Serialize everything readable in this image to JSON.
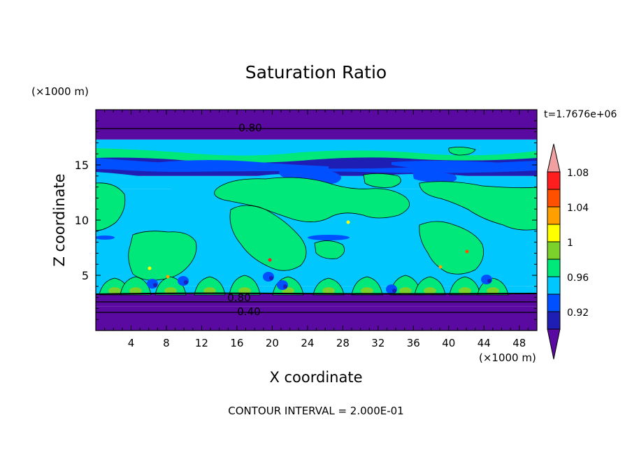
{
  "chart_data": {
    "type": "heatmap",
    "title": "Saturation Ratio",
    "xlabel": "X coordinate",
    "ylabel": "Z coordinate",
    "x_unit": "(×1000 m)",
    "y_unit": "(×1000 m)",
    "time_label": "t=1.7676e+06",
    "footer": "CONTOUR INTERVAL = 2.000E-01",
    "xlim": [
      0,
      50
    ],
    "ylim": [
      0,
      20
    ],
    "x_ticks": [
      4,
      8,
      12,
      16,
      20,
      24,
      28,
      32,
      36,
      40,
      44,
      48
    ],
    "y_ticks": [
      5,
      10,
      15
    ],
    "contour_labels": [
      "0.80",
      "0.80",
      "0.40"
    ],
    "colorbar": {
      "levels": [
        0.92,
        0.96,
        1,
        1.04,
        1.08
      ],
      "level_labels": [
        "0.92",
        "0.96",
        "1",
        "1.04",
        "1.08"
      ],
      "colors": [
        "#5a0aa0",
        "#1e1eb4",
        "#0050ff",
        "#00c8ff",
        "#00e87a",
        "#7ad22a",
        "#ffff00",
        "#ffa000",
        "#ff5000",
        "#ff1e1e",
        "#f0a0a0"
      ],
      "extend": "both"
    },
    "bands": [
      {
        "z_min": 0,
        "z_max": 2.2,
        "value": 0.4
      },
      {
        "z_min": 2.2,
        "z_max": 3.3,
        "value": 0.6
      },
      {
        "z_min": 3.3,
        "z_max": 4.0,
        "value": 0.97
      },
      {
        "z_min": 4.0,
        "z_max": 12.8,
        "value": 0.99
      },
      {
        "z_min": 12.8,
        "z_max": 14.0,
        "value": 0.97
      },
      {
        "z_min": 14.0,
        "z_max": 15.8,
        "value": 0.9
      },
      {
        "z_min": 15.8,
        "z_max": 17.3,
        "value": 0.97
      },
      {
        "z_min": 17.3,
        "z_max": 20,
        "value": 0.8
      }
    ]
  }
}
